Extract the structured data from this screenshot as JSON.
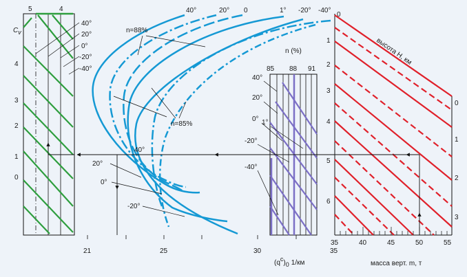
{
  "left_chart": {
    "axis_title": "C",
    "axis_title_sub": "v",
    "top_labels": [
      "5",
      "4"
    ],
    "y_ticks": [
      "4",
      "3",
      "2",
      "1",
      "0"
    ],
    "temp_labels": [
      "40°",
      "20°",
      "0°",
      "-20°",
      "-40°"
    ],
    "colors": {
      "lines": "#2e9e3e"
    }
  },
  "middle_chart": {
    "top_temp_labels": [
      "40°",
      "20°",
      "0",
      "1°",
      "-20°",
      "-40°"
    ],
    "n88_label": "n=88%",
    "n85_label": "n=85%",
    "left_temp_labels": [
      "40°",
      "20°",
      "0°",
      "-20°"
    ],
    "x_ticks": [
      "21",
      "25",
      "30",
      "35"
    ],
    "x_axis_label": "(q",
    "x_axis_label_sup": "c",
    "x_axis_label_tail": ")",
    "x_axis_label_sub": "0",
    "x_axis_unit": "1/км",
    "colors": {
      "curves": "#1599d4"
    }
  },
  "n_chart": {
    "title": "n (%)",
    "col_labels": [
      "85",
      "88",
      "91"
    ],
    "temp_labels": [
      "40°",
      "20°",
      "0°",
      "1°",
      "-20°",
      "-40°"
    ],
    "colors": {
      "lines": "#7b6fc6"
    }
  },
  "right_chart": {
    "altitude_label": "высота H, км",
    "left_ticks": [
      "0",
      "1",
      "2",
      "3",
      "4",
      "5",
      "6"
    ],
    "right_ticks": [
      "0",
      "1",
      "2",
      "3"
    ],
    "x_ticks": [
      "35",
      "40",
      "45",
      "50",
      "55"
    ],
    "x_axis_label": "масса верт. m, т",
    "colors": {
      "lines": "#e0202a"
    }
  }
}
